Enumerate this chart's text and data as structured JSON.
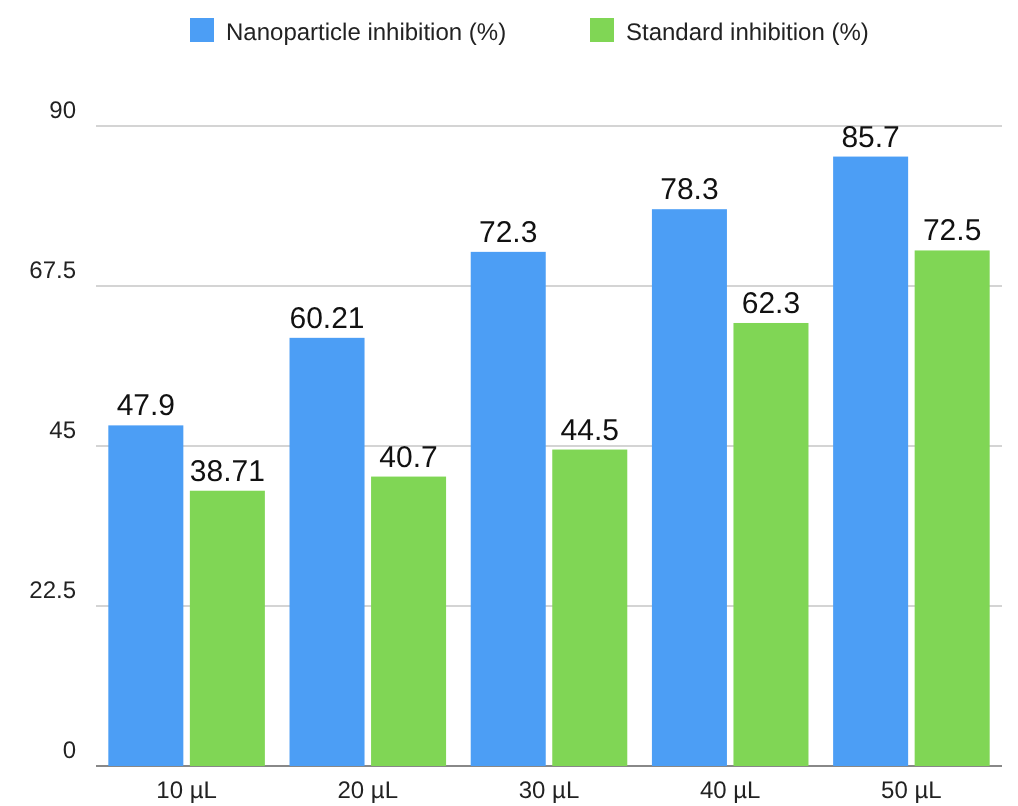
{
  "chart_data": {
    "type": "bar",
    "categories": [
      "10 µL",
      "20 µL",
      "30 µL",
      "40 µL",
      "50 µL"
    ],
    "series": [
      {
        "name": "Nanoparticle inhibition (%)",
        "color": "#4c9ef5",
        "values": [
          47.9,
          60.21,
          72.3,
          78.3,
          85.7
        ]
      },
      {
        "name": "Standard inhibition (%)",
        "color": "#80d655",
        "values": [
          38.71,
          40.7,
          44.5,
          62.3,
          72.5
        ]
      }
    ],
    "ylim": [
      0,
      90
    ],
    "yticks": [
      0,
      22.5,
      45,
      67.5,
      90
    ],
    "grid": "y",
    "legend": "top",
    "data_labels": true
  }
}
